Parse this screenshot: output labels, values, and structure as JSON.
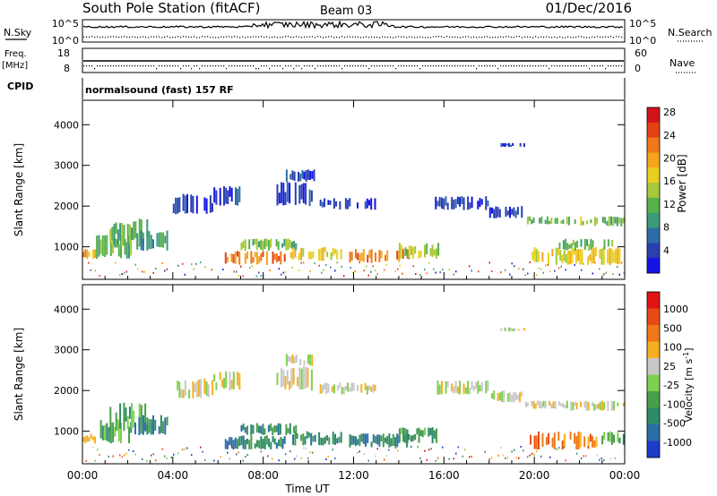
{
  "header": {
    "station": "South Pole Station (fitACF)",
    "beam": "Beam 03",
    "date": "01/Dec/2016"
  },
  "top_panels": {
    "nsky": {
      "label": "N.Sky",
      "left_ticks": [
        "10^5",
        "10^0"
      ],
      "right_ticks": [
        "10^5",
        "10^0"
      ],
      "right_label": "N.Search"
    },
    "freq": {
      "label_line1": "Freq.",
      "label_line2": "[MHz]",
      "left_ticks": [
        "18",
        "8"
      ],
      "right_ticks": [
        "60",
        "0"
      ],
      "right_label": "Nave"
    },
    "cpid": {
      "label": "CPID",
      "text": "normalsound (fast) 157 RF"
    }
  },
  "chart_data": [
    {
      "type": "heatmap",
      "panel": "power",
      "ylabel": "Slant Range [km]",
      "ylim": [
        200,
        4600
      ],
      "yticks": [
        "1000",
        "2000",
        "3000",
        "4000"
      ],
      "xlim": [
        0,
        24
      ],
      "colorbar": {
        "label": "Power [dB]",
        "ticks": [
          "4",
          "8",
          "12",
          "16",
          "20",
          "24",
          "28"
        ],
        "colors": [
          "#1414e6",
          "#2a3fb0",
          "#2d6ea8",
          "#3c9a78",
          "#58b04a",
          "#a6c83a",
          "#e8d020",
          "#f4a51c",
          "#f07818",
          "#e44214",
          "#d4141a"
        ]
      },
      "echo_bands": [
        {
          "t0": 0.0,
          "t1": 0.6,
          "r0": 700,
          "r1": 950,
          "level": 7
        },
        {
          "t0": 0.6,
          "t1": 2.2,
          "r0": 700,
          "r1": 1300,
          "level": 4
        },
        {
          "t0": 1.2,
          "t1": 3.0,
          "r0": 1000,
          "r1": 1700,
          "level": 4
        },
        {
          "t0": 2.3,
          "t1": 3.8,
          "r0": 900,
          "r1": 1400,
          "level": 3
        },
        {
          "t0": 4.0,
          "t1": 5.8,
          "r0": 1800,
          "r1": 2300,
          "level": 1
        },
        {
          "t0": 5.8,
          "t1": 7.0,
          "r0": 2000,
          "r1": 2500,
          "level": 1
        },
        {
          "t0": 6.3,
          "t1": 9.0,
          "r0": 550,
          "r1": 900,
          "level": 8
        },
        {
          "t0": 7.0,
          "t1": 9.5,
          "r0": 900,
          "r1": 1200,
          "level": 4
        },
        {
          "t0": 8.5,
          "t1": 10.2,
          "r0": 2000,
          "r1": 2600,
          "level": 1
        },
        {
          "t0": 9.0,
          "t1": 10.3,
          "r0": 2600,
          "r1": 2900,
          "level": 1
        },
        {
          "t0": 9.2,
          "t1": 11.5,
          "r0": 650,
          "r1": 1000,
          "level": 6
        },
        {
          "t0": 10.5,
          "t1": 13.0,
          "r0": 1900,
          "r1": 2200,
          "level": 1
        },
        {
          "t0": 11.8,
          "t1": 14.5,
          "r0": 600,
          "r1": 950,
          "level": 8
        },
        {
          "t0": 14.0,
          "t1": 15.8,
          "r0": 700,
          "r1": 1100,
          "level": 5
        },
        {
          "t0": 15.6,
          "t1": 18.0,
          "r0": 1900,
          "r1": 2250,
          "level": 1
        },
        {
          "t0": 18.0,
          "t1": 19.5,
          "r0": 1700,
          "r1": 2000,
          "level": 1
        },
        {
          "t0": 18.5,
          "t1": 19.6,
          "r0": 3450,
          "r1": 3550,
          "level": 1
        },
        {
          "t0": 19.5,
          "t1": 21.5,
          "r0": 1550,
          "r1": 1750,
          "level": 4
        },
        {
          "t0": 21.5,
          "t1": 23.0,
          "r0": 1500,
          "r1": 1750,
          "level": 5
        },
        {
          "t0": 23.0,
          "t1": 24.0,
          "r0": 1500,
          "r1": 1750,
          "level": 4
        },
        {
          "t0": 19.8,
          "t1": 24.0,
          "r0": 550,
          "r1": 1000,
          "level": 6
        },
        {
          "t0": 21.0,
          "t1": 23.5,
          "r0": 900,
          "r1": 1200,
          "level": 4
        }
      ]
    },
    {
      "type": "heatmap",
      "panel": "velocity",
      "ylabel": "Slant Range [km]",
      "xlabel": "Time UT",
      "ylim": [
        200,
        4600
      ],
      "yticks": [
        "1000",
        "2000",
        "3000",
        "4000"
      ],
      "xlim": [
        0,
        24
      ],
      "xticks": [
        "00:00",
        "04:00",
        "08:00",
        "12:00",
        "16:00",
        "20:00",
        "00:00"
      ],
      "colorbar": {
        "label": "Velocity [m s",
        "label_sup": "-1",
        "label_end": "]",
        "ticks": [
          "1000",
          "500",
          "100",
          "25",
          "-25",
          "-100",
          "-500",
          "-1000"
        ],
        "colors": [
          "#1e3cc8",
          "#2a6ea8",
          "#2e8a66",
          "#4a9e4a",
          "#7ed050",
          "#c8c8c8",
          "#f4b020",
          "#f07818",
          "#e84a14",
          "#e01414"
        ]
      },
      "echo_bands": [
        {
          "t0": 0.0,
          "t1": 0.6,
          "r0": 700,
          "r1": 950,
          "level": 6
        },
        {
          "t0": 0.6,
          "t1": 2.2,
          "r0": 700,
          "r1": 1300,
          "level": 3
        },
        {
          "t0": 1.2,
          "t1": 3.0,
          "r0": 1000,
          "r1": 1700,
          "level": 3
        },
        {
          "t0": 2.3,
          "t1": 3.8,
          "r0": 900,
          "r1": 1400,
          "level": 2
        },
        {
          "t0": 4.0,
          "t1": 5.8,
          "r0": 1800,
          "r1": 2300,
          "level": 5
        },
        {
          "t0": 5.8,
          "t1": 7.0,
          "r0": 2000,
          "r1": 2500,
          "level": 5
        },
        {
          "t0": 6.3,
          "t1": 9.0,
          "r0": 550,
          "r1": 900,
          "level": 2
        },
        {
          "t0": 7.0,
          "t1": 9.5,
          "r0": 900,
          "r1": 1200,
          "level": 2
        },
        {
          "t0": 8.5,
          "t1": 10.2,
          "r0": 2000,
          "r1": 2600,
          "level": 5
        },
        {
          "t0": 9.0,
          "t1": 10.3,
          "r0": 2600,
          "r1": 2900,
          "level": 5
        },
        {
          "t0": 9.2,
          "t1": 11.5,
          "r0": 650,
          "r1": 1000,
          "level": 2
        },
        {
          "t0": 10.5,
          "t1": 13.0,
          "r0": 1900,
          "r1": 2200,
          "level": 5
        },
        {
          "t0": 11.8,
          "t1": 14.5,
          "r0": 600,
          "r1": 950,
          "level": 2
        },
        {
          "t0": 14.0,
          "t1": 15.8,
          "r0": 700,
          "r1": 1100,
          "level": 3
        },
        {
          "t0": 15.6,
          "t1": 18.0,
          "r0": 1900,
          "r1": 2250,
          "level": 5
        },
        {
          "t0": 18.0,
          "t1": 19.5,
          "r0": 1700,
          "r1": 2000,
          "level": 5
        },
        {
          "t0": 18.5,
          "t1": 19.6,
          "r0": 3450,
          "r1": 3550,
          "level": 5
        },
        {
          "t0": 19.5,
          "t1": 21.5,
          "r0": 1550,
          "r1": 1750,
          "level": 5
        },
        {
          "t0": 21.5,
          "t1": 24.0,
          "r0": 1500,
          "r1": 1750,
          "level": 5
        },
        {
          "t0": 19.8,
          "t1": 22.8,
          "r0": 550,
          "r1": 1000,
          "level": 7
        },
        {
          "t0": 22.8,
          "t1": 24.0,
          "r0": 650,
          "r1": 1000,
          "level": 3
        }
      ]
    }
  ]
}
